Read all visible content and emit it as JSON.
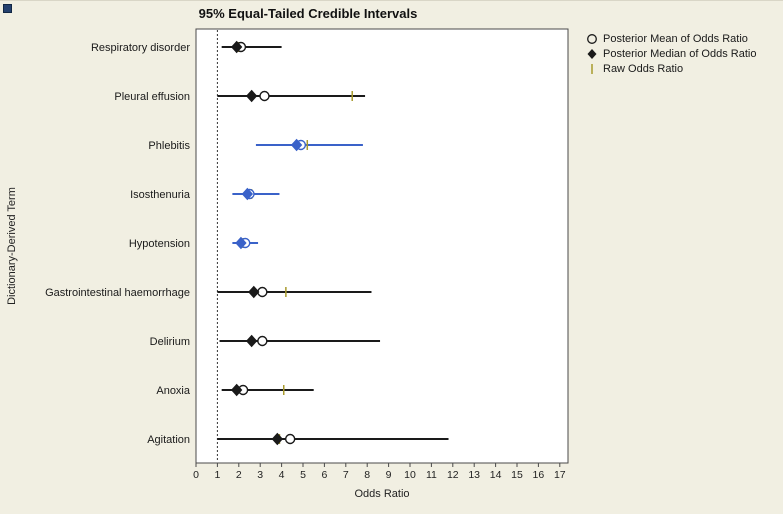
{
  "window": {
    "disclosure_icon": "disclosure-box"
  },
  "chart_data": {
    "type": "interval",
    "title": "95% Equal-Tailed Credible Intervals",
    "xlabel": "Odds Ratio",
    "ylabel": "Dictionary-Derived Term",
    "xlim": [
      0,
      17.4
    ],
    "x_ticks": [
      0,
      1,
      2,
      3,
      4,
      5,
      6,
      7,
      8,
      9,
      10,
      11,
      12,
      13,
      14,
      15,
      16,
      17
    ],
    "reference_line": 1,
    "grid": false,
    "legend_position": "top-right",
    "legend": [
      {
        "marker": "open-circle",
        "label": "Posterior Mean of Odds Ratio"
      },
      {
        "marker": "filled-diamond",
        "label": "Posterior Median of Odds Ratio"
      },
      {
        "marker": "vertical-tick",
        "label": "Raw Odds Ratio"
      }
    ],
    "colors": {
      "black": "#1a1a1a",
      "blue": "#3a62c9",
      "raw_tick": "#a89a2d",
      "frame": "#4a4a4a",
      "plot_bg": "#ffffff"
    },
    "rows": [
      {
        "term": "Respiratory disorder",
        "color": "black",
        "lower": 1.2,
        "upper": 4.0,
        "median": 1.9,
        "mean": 2.1,
        "raw": 2.0
      },
      {
        "term": "Pleural effusion",
        "color": "black",
        "lower": 1.0,
        "upper": 7.9,
        "median": 2.6,
        "mean": 3.2,
        "raw": 7.3
      },
      {
        "term": "Phlebitis",
        "color": "blue",
        "lower": 2.8,
        "upper": 7.8,
        "median": 4.7,
        "mean": 4.9,
        "raw": 5.2
      },
      {
        "term": "Isosthenuria",
        "color": "blue",
        "lower": 1.7,
        "upper": 3.9,
        "median": 2.4,
        "mean": 2.5,
        "raw": 2.6
      },
      {
        "term": "Hypotension",
        "color": "blue",
        "lower": 1.7,
        "upper": 2.9,
        "median": 2.1,
        "mean": 2.3,
        "raw": 2.2
      },
      {
        "term": "Gastrointestinal haemorrhage",
        "color": "black",
        "lower": 1.0,
        "upper": 8.2,
        "median": 2.7,
        "mean": 3.1,
        "raw": 4.2
      },
      {
        "term": "Delirium",
        "color": "black",
        "lower": 1.1,
        "upper": 8.6,
        "median": 2.6,
        "mean": 3.1,
        "raw": 2.6
      },
      {
        "term": "Anoxia",
        "color": "black",
        "lower": 1.2,
        "upper": 5.5,
        "median": 1.9,
        "mean": 2.2,
        "raw": 4.1
      },
      {
        "term": "Agitation",
        "color": "black",
        "lower": 1.0,
        "upper": 11.8,
        "median": 3.8,
        "mean": 4.4,
        "raw": 3.9
      }
    ]
  }
}
